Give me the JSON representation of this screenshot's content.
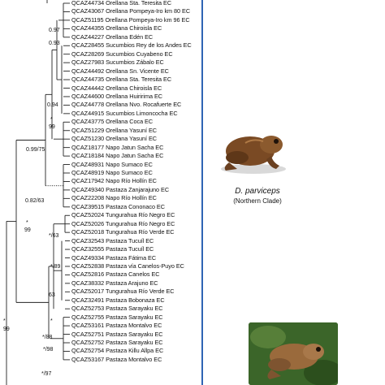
{
  "leaves": [
    "QCAZ44734 Orellana Sta. Teresita EC",
    "QCAZ43067 Orellana Pompeya-Iro km 80 EC",
    "QCAZ51195 Orellana Pompeya-Iro km 96 EC",
    "QCAZ44355 Orellana Chiroisla EC",
    "QCAZ44227 Orellana Edén EC",
    "QCAZ28455 Sucumbios Rey de los Andes EC",
    "QCAZ28269 Sucumbios Cuyabeno EC",
    "QCAZ27983 Sucumbios Zábalo EC",
    "QCAZ44492 Orellana Sn. Vicente EC",
    "QCAZ44735 Orellana Sta. Teresita EC",
    "QCAZ44442 Orellana Chiroisla EC",
    "QCAZ44600 Orellana Huiririma EC",
    "QCAZ44778 Orellana Nvo. Rocafuerte EC",
    "QCAZ44915 Sucumbios Limoncocha EC",
    "QCAZ43775 Orellana Coca EC",
    "QCAZ51229 Orellana Yasuní EC",
    "QCAZ51230 Orellana Yasuní EC",
    "QCAZ18177 Napo Jatun Sacha EC",
    "QCAZ18184 Napo Jatun Sacha EC",
    "QCAZ48931 Napo Sumaco EC",
    "QCAZ48919 Napo Sumaco EC",
    "QCAZ17942 Napo Río Hollín EC",
    "QCAZ49340 Pastaza Zanjarajuno EC",
    "QCAZ22208 Napo Río Hollín EC",
    "QCAZ39515 Pastaza Cononaco EC",
    "QCAZ52024 Tungurahua Río Negro EC",
    "QCAZ52026 Tungurahua Río Negro EC",
    "QCAZ52018 Tungurahua Río Verde EC",
    "QCAZ32543 Pastaza Tucuíl EC",
    "QCAZ32555 Pastaza Tucuíl EC",
    "QCAZ49334 Pastaza Fátima EC",
    "QCAZ52838 Pastaza vía Canelos-Puyo EC",
    "QCAZ52816 Pastaza Canelos EC",
    "QCAZ38332 Pastaza Arajuno EC",
    "QCAZ52017 Tungurahua Río Verde EC",
    "QCAZ32491 Pastaza Bobonaza EC",
    "QCAZ52753 Pastaza Sarayaku EC",
    "QCAZ52755 Pastaza Sarayaku EC",
    "QCAZ53161 Pastaza Montalvo EC",
    "QCAZ52751 Pastaza Sarayaku EC",
    "QCAZ52752 Pastaza Sarayaku EC",
    "QCAZ52754 Pastaza Killu Allpa EC",
    "QCAZ53167 Pastaza Montalvo EC"
  ],
  "supports": [
    {
      "label": "0.97"
    },
    {
      "label": "0.93"
    },
    {
      "label": "0.94"
    },
    {
      "label": "*"
    },
    {
      "label": "99"
    },
    {
      "label": "0.99/75"
    },
    {
      "label": "0.82/63"
    },
    {
      "label": "*"
    },
    {
      "label": "99"
    },
    {
      "label": "*/63"
    },
    {
      "label": "*/89"
    },
    {
      "label": "63"
    },
    {
      "label": "*"
    },
    {
      "label": "*"
    },
    {
      "label": "99"
    },
    {
      "label": "*/88"
    },
    {
      "label": "*/98"
    },
    {
      "label": "*/97"
    }
  ],
  "clade": {
    "species": "D. parviceps",
    "name": "(Northern Clade)"
  },
  "colors": {
    "clade_bar": "#2f64b4",
    "branch": "#222222"
  }
}
